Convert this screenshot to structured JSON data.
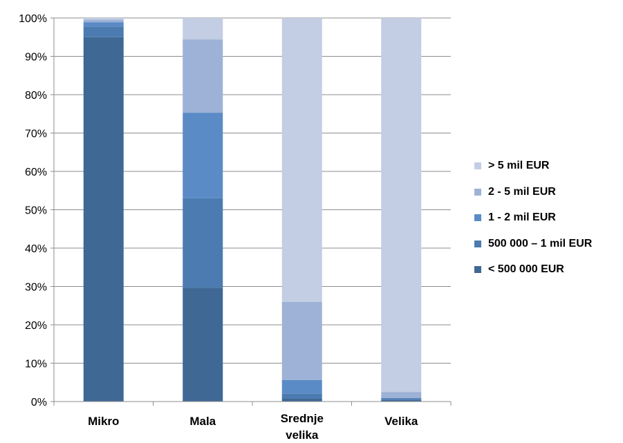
{
  "chart_data": {
    "type": "bar",
    "stacked": true,
    "normalized": true,
    "categories": [
      "Mikro",
      "Mala",
      "Srednje velika",
      "Velika"
    ],
    "category_label_lines": [
      [
        "Mikro"
      ],
      [
        "Mala"
      ],
      [
        "Srednje",
        "velika"
      ],
      [
        "Velika"
      ]
    ],
    "y_ticks": [
      "0%",
      "10%",
      "20%",
      "30%",
      "40%",
      "50%",
      "60%",
      "70%",
      "80%",
      "90%",
      "100%"
    ],
    "ylim": [
      0,
      100
    ],
    "grid": true,
    "legend_position": "right",
    "series": [
      {
        "name": "< 500 000 EUR",
        "color": "#3f6895",
        "values": [
          95.0,
          29.7,
          0.8,
          0.4
        ]
      },
      {
        "name": "500 000 – 1 mil EUR",
        "color": "#4b7bb0",
        "values": [
          2.8,
          23.3,
          1.2,
          0.4
        ]
      },
      {
        "name": "1 - 2 mil EUR",
        "color": "#5a8bc6",
        "values": [
          1.1,
          22.3,
          3.6,
          0.1
        ]
      },
      {
        "name": "2 - 5 mil EUR",
        "color": "#9db2d6",
        "values": [
          0.7,
          19.1,
          20.4,
          1.6
        ]
      },
      {
        "name": "> 5 mil EUR",
        "color": "#c3cde3",
        "values": [
          0.4,
          5.6,
          74.0,
          97.5
        ]
      }
    ]
  }
}
